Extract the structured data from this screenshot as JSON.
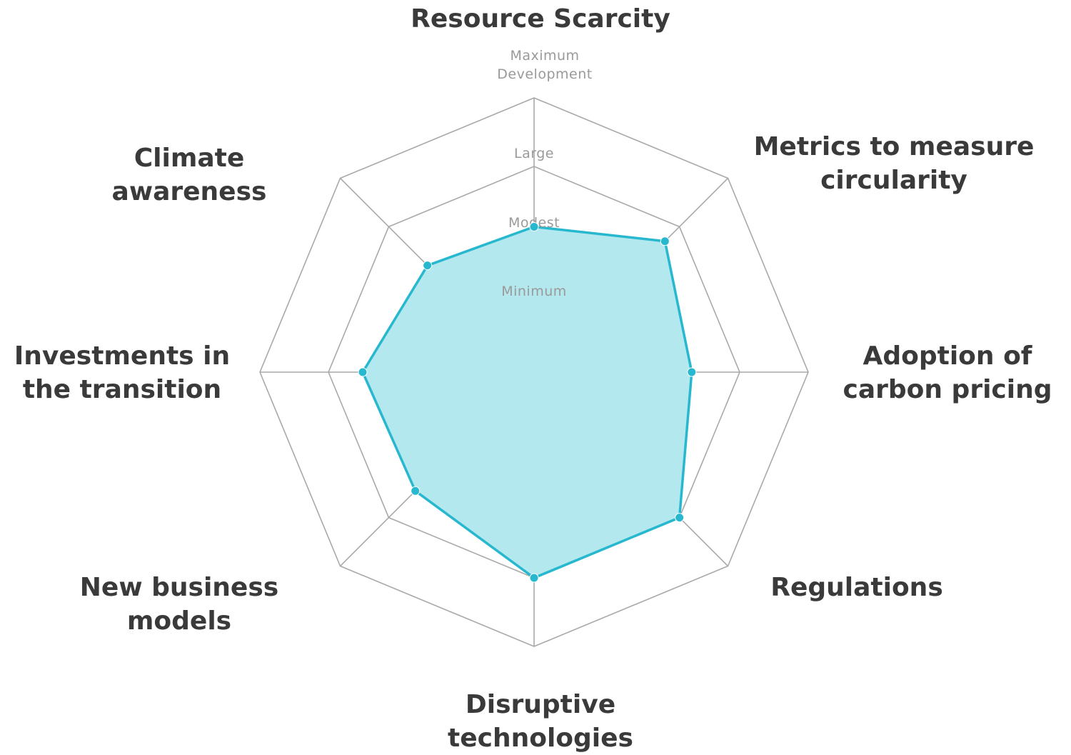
{
  "chart_data": {
    "type": "radar",
    "axes": [
      "Resource Scarcity",
      "Metrics to measure circularity",
      "Adoption of carbon pricing",
      "Regulations",
      "Disruptive technologies",
      "New business models",
      "Investments in the transition",
      "Climate awareness"
    ],
    "levels": [
      "Minimum",
      "Modest",
      "Large",
      "Maximum Development"
    ],
    "range": [
      0,
      4
    ],
    "series": [
      {
        "values": [
          2.12,
          2.7,
          2.3,
          3.0,
          3.0,
          2.45,
          2.5,
          2.2
        ]
      }
    ],
    "colors": {
      "line": "#27b8cf",
      "fill": "#b3e8ee",
      "grid": "#a9a9a9"
    },
    "grid": true,
    "legend": "none"
  }
}
